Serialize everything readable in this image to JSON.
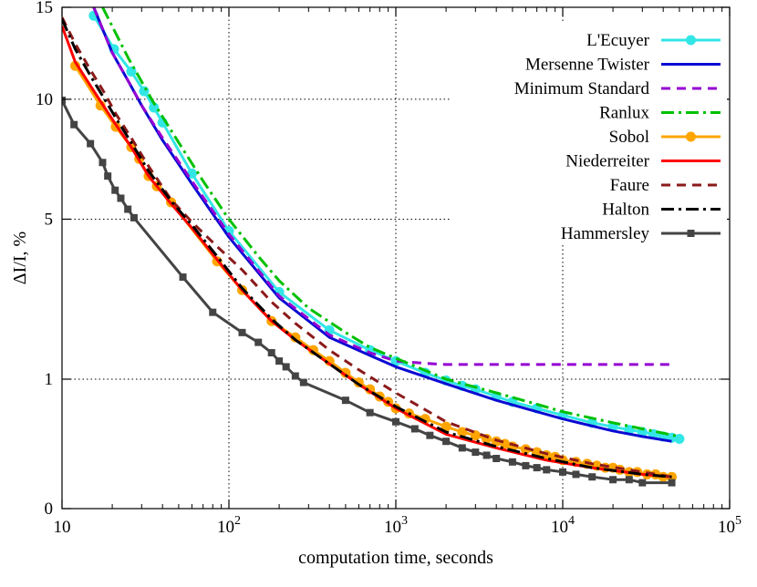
{
  "chart_data": {
    "type": "line",
    "xlabel": "computation time, seconds",
    "ylabel": "ΔI/I, %",
    "x_scale": "log",
    "y_scale": "sqrt",
    "xlim": [
      10,
      100000
    ],
    "ylim": [
      0,
      15
    ],
    "grid": true,
    "legend_position": "top-right",
    "x_ticks": [
      {
        "value": 10,
        "base": "10",
        "exp": ""
      },
      {
        "value": 100,
        "base": "10",
        "exp": "2"
      },
      {
        "value": 1000,
        "base": "10",
        "exp": "3"
      },
      {
        "value": 10000,
        "base": "10",
        "exp": "4"
      },
      {
        "value": 100000,
        "base": "10",
        "exp": "5"
      }
    ],
    "y_ticks": [
      {
        "value": 0,
        "label": "0"
      },
      {
        "value": 1,
        "label": "1"
      },
      {
        "value": 5,
        "label": "5"
      },
      {
        "value": 10,
        "label": "10"
      },
      {
        "value": 15,
        "label": "15"
      }
    ],
    "series": [
      {
        "name": "L'Ecuyer",
        "color": "#33e6e6",
        "dash": "solid",
        "marker": "circle",
        "x": [
          15.5,
          20.5,
          26,
          31,
          35.5,
          40,
          60,
          100,
          200,
          400,
          700,
          1000,
          1500,
          2000,
          2500,
          3000,
          4000,
          5000,
          7000,
          10000,
          15000,
          20000,
          25000,
          30000,
          35000,
          40000,
          45000,
          50000
        ],
        "y": [
          14.5,
          12.6,
          11.4,
          10.4,
          9.6,
          8.9,
          6.7,
          4.6,
          2.8,
          1.9,
          1.5,
          1.3,
          1.1,
          0.98,
          0.9,
          0.85,
          0.75,
          0.68,
          0.6,
          0.52,
          0.44,
          0.4,
          0.37,
          0.35,
          0.33,
          0.31,
          0.3,
          0.29
        ]
      },
      {
        "name": "Mersenne Twister",
        "color": "#0a0ad2",
        "dash": "solid",
        "marker": "none",
        "x": [
          15.5,
          20,
          25,
          30,
          40,
          60,
          100,
          200,
          400,
          700,
          1000,
          2000,
          4000,
          7000,
          10000,
          20000,
          30000,
          45000
        ],
        "y": [
          15,
          12.4,
          10.9,
          9.7,
          8.1,
          6.3,
          4.4,
          2.65,
          1.75,
          1.4,
          1.2,
          0.93,
          0.7,
          0.56,
          0.48,
          0.36,
          0.31,
          0.27
        ]
      },
      {
        "name": "Minimum Standard",
        "color": "#9400d3",
        "dash": "dash",
        "marker": "none",
        "x": [
          15.5,
          20,
          25,
          30,
          40,
          60,
          100,
          200,
          400,
          700,
          1000,
          1500,
          2000,
          3000,
          5000,
          10000,
          20000,
          45000
        ],
        "y": [
          15,
          12.4,
          10.9,
          9.7,
          8.2,
          6.4,
          4.5,
          2.7,
          1.8,
          1.45,
          1.3,
          1.26,
          1.24,
          1.24,
          1.24,
          1.24,
          1.24,
          1.24
        ]
      },
      {
        "name": "Ranlux",
        "color": "#00c000",
        "dash": "dashdot",
        "marker": "none",
        "x": [
          17.5,
          25,
          35,
          50,
          70,
          100,
          150,
          200,
          300,
          500,
          700,
          1000,
          2000,
          4000,
          7000,
          10000,
          20000,
          30000,
          50000
        ],
        "y": [
          15,
          12.1,
          9.9,
          8.0,
          6.4,
          5.0,
          3.8,
          3.1,
          2.4,
          1.85,
          1.55,
          1.35,
          1.0,
          0.8,
          0.65,
          0.56,
          0.44,
          0.38,
          0.31
        ]
      },
      {
        "name": "Sobol",
        "color": "#ffa500",
        "dash": "solid",
        "marker": "circle",
        "x": [
          12,
          17,
          21,
          26,
          29,
          33,
          37,
          45,
          85,
          120,
          180,
          250,
          320,
          400,
          500,
          600,
          700,
          800,
          900,
          1000,
          1200,
          1500,
          2000,
          2500,
          3000,
          3500,
          4000,
          4500,
          5000,
          6000,
          7000,
          8000,
          9000,
          10000,
          12000,
          14000,
          16000,
          18000,
          20000,
          22000,
          25000,
          28000,
          32000,
          36000,
          40000,
          45000
        ],
        "y": [
          11.7,
          9.7,
          8.7,
          7.8,
          7.3,
          6.6,
          6.2,
          5.6,
          3.65,
          2.85,
          2.1,
          1.75,
          1.5,
          1.3,
          1.1,
          0.95,
          0.85,
          0.75,
          0.68,
          0.6,
          0.54,
          0.48,
          0.4,
          0.35,
          0.32,
          0.29,
          0.27,
          0.25,
          0.23,
          0.21,
          0.19,
          0.17,
          0.16,
          0.14,
          0.13,
          0.12,
          0.11,
          0.1,
          0.1,
          0.09,
          0.08,
          0.08,
          0.07,
          0.07,
          0.06,
          0.06
        ]
      },
      {
        "name": "Niederreiter",
        "color": "#ff0000",
        "dash": "solid",
        "marker": "none",
        "x": [
          10,
          12,
          15,
          18,
          21,
          26,
          33,
          45,
          60,
          85,
          120,
          180,
          250,
          400,
          600,
          1000,
          2000,
          4000,
          8000,
          15000,
          30000,
          45000
        ],
        "y": [
          13.9,
          11.9,
          10.6,
          9.6,
          8.8,
          7.8,
          6.6,
          5.55,
          4.7,
          3.7,
          2.85,
          2.1,
          1.7,
          1.25,
          0.92,
          0.6,
          0.33,
          0.22,
          0.14,
          0.1,
          0.07,
          0.06
        ]
      },
      {
        "name": "Faure",
        "color": "#8b1a1a",
        "dash": "dash",
        "marker": "none",
        "x": [
          10,
          12,
          15,
          18,
          21,
          26,
          33,
          45,
          60,
          85,
          120,
          180,
          250,
          400,
          600,
          1000,
          2000,
          4000,
          8000,
          15000,
          30000,
          45000
        ],
        "y": [
          14.4,
          12.9,
          11.4,
          10.3,
          9.3,
          8.2,
          7.0,
          5.7,
          4.9,
          4.1,
          3.4,
          2.55,
          2.05,
          1.5,
          1.15,
          0.8,
          0.45,
          0.28,
          0.18,
          0.12,
          0.08,
          0.06
        ]
      },
      {
        "name": "Halton",
        "color": "#000000",
        "dash": "dashdot",
        "marker": "none",
        "x": [
          10,
          12,
          15,
          18,
          21,
          26,
          33,
          45,
          60,
          85,
          120,
          180,
          250,
          400,
          600,
          1000,
          2000,
          4000,
          8000,
          15000,
          30000,
          45000
        ],
        "y": [
          14.3,
          12.6,
          11.1,
          10.0,
          9.1,
          8.0,
          6.8,
          5.65,
          4.8,
          3.8,
          2.9,
          2.15,
          1.7,
          1.25,
          0.92,
          0.62,
          0.35,
          0.23,
          0.15,
          0.1,
          0.07,
          0.06
        ]
      },
      {
        "name": "Hammersley",
        "color": "#444444",
        "dash": "solid",
        "marker": "square",
        "x": [
          10,
          11.8,
          14.8,
          17.5,
          18.8,
          20.8,
          22.5,
          24.8,
          27,
          53,
          80,
          120,
          150,
          180,
          200,
          220,
          250,
          280,
          500,
          700,
          1000,
          1300,
          1600,
          2000,
          2500,
          3000,
          3500,
          4000,
          5000,
          6000,
          7000,
          8000,
          10000,
          12000,
          15000,
          20000,
          25000,
          30000,
          45000
        ],
        "y": [
          9.95,
          8.8,
          7.95,
          7.15,
          6.6,
          6.05,
          5.75,
          5.35,
          5.05,
          3.2,
          2.3,
          1.85,
          1.65,
          1.45,
          1.3,
          1.2,
          1.05,
          0.95,
          0.7,
          0.55,
          0.45,
          0.38,
          0.32,
          0.27,
          0.22,
          0.19,
          0.17,
          0.15,
          0.13,
          0.11,
          0.1,
          0.09,
          0.08,
          0.07,
          0.06,
          0.05,
          0.05,
          0.04,
          0.04
        ]
      }
    ]
  }
}
